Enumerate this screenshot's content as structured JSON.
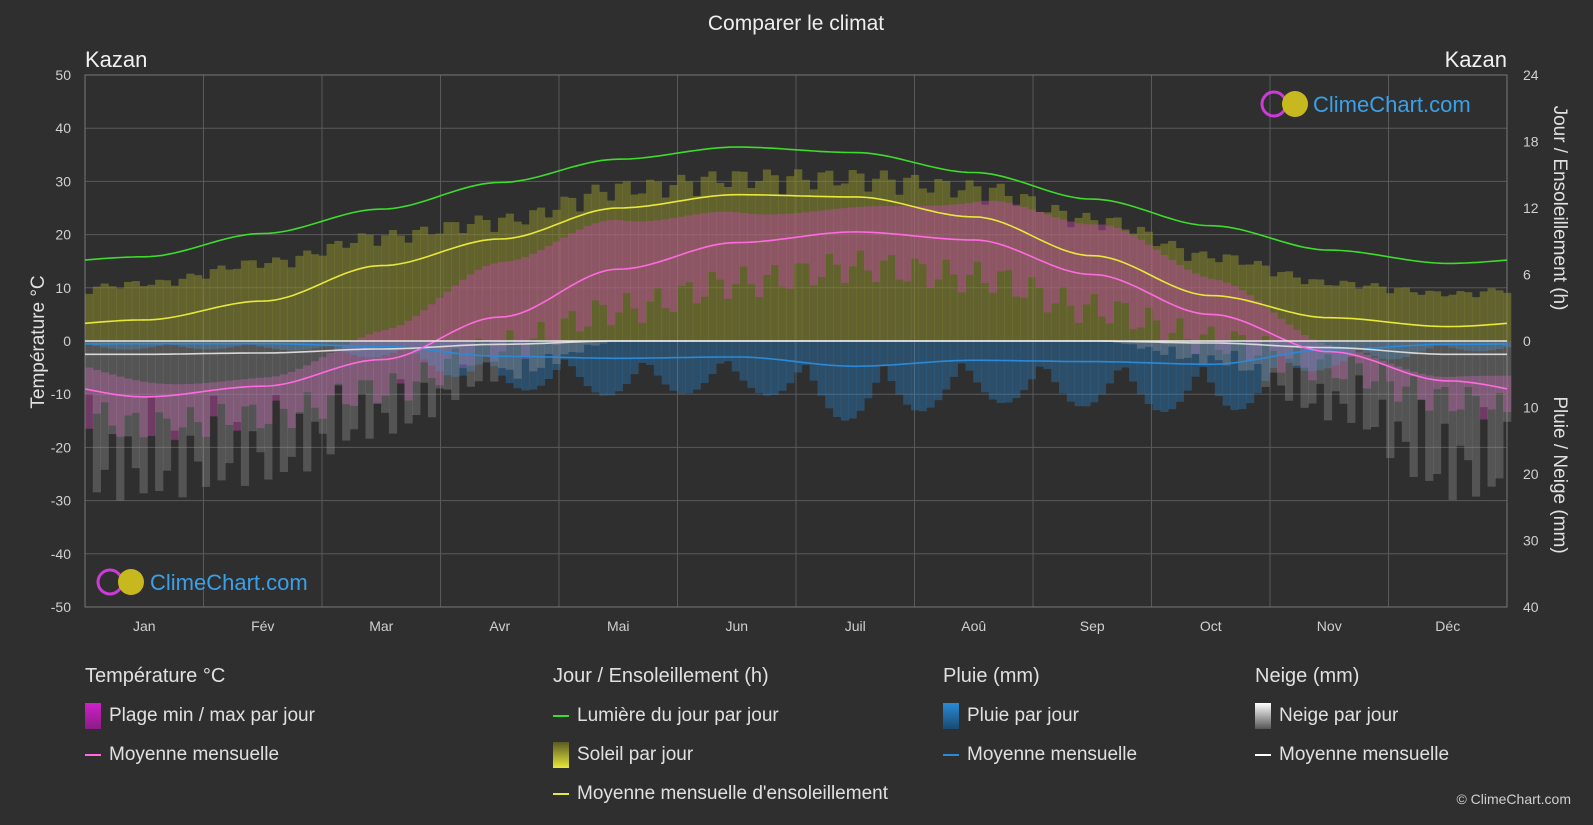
{
  "page": {
    "title": "Comparer le climat",
    "location_left": "Kazan",
    "location_right": "Kazan",
    "watermark": "ClimeChart.com",
    "copyright": "© ClimeChart.com"
  },
  "axes": {
    "left_label": "Température °C",
    "right_top_label": "Jour / Ensoleillement (h)",
    "right_bottom_label": "Pluie / Neige (mm)",
    "left_ticks": [
      "50",
      "40",
      "30",
      "20",
      "10",
      "0",
      "-10",
      "-20",
      "-30",
      "-40",
      "-50"
    ],
    "right_top_ticks": [
      "24",
      "18",
      "12",
      "6",
      "0"
    ],
    "right_bottom_ticks": [
      "10",
      "20",
      "30",
      "40"
    ],
    "months": [
      "Jan",
      "Fév",
      "Mar",
      "Avr",
      "Mai",
      "Jun",
      "Juil",
      "Aoû",
      "Sep",
      "Oct",
      "Nov",
      "Déc"
    ]
  },
  "legend": {
    "temperature": {
      "title": "Température °C",
      "range": "Plage min / max par jour",
      "mean": "Moyenne mensuelle"
    },
    "sun": {
      "title": "Jour / Ensoleillement (h)",
      "daylight": "Lumière du jour par jour",
      "sunshine": "Soleil par jour",
      "sun_mean": "Moyenne mensuelle d'ensoleillement"
    },
    "rain": {
      "title": "Pluie (mm)",
      "daily": "Pluie par jour",
      "mean": "Moyenne mensuelle"
    },
    "snow": {
      "title": "Neige (mm)",
      "daily": "Neige par jour",
      "mean": "Moyenne mensuelle"
    }
  },
  "colors": {
    "background": "#2f2f2f",
    "grid": "#5a5a5a",
    "daylight": "#3ddc2a",
    "sunshine_mean": "#e8e83a",
    "sunshine_fill": "#8c8c2e",
    "temp_mean": "#ff6ae0",
    "temp_range": "#c04aa8",
    "rain": "#2a8ad8",
    "snow": "#d8d8d8",
    "brand": "#3aa0e8"
  },
  "chart_data": {
    "type": "line",
    "categories": [
      "Jan",
      "Fév",
      "Mar",
      "Avr",
      "Mai",
      "Jun",
      "Juil",
      "Aoû",
      "Sep",
      "Oct",
      "Nov",
      "Déc"
    ],
    "temperature_ylim": [
      -50,
      50
    ],
    "hours_ylim": [
      0,
      24
    ],
    "precip_ylim": [
      0,
      40
    ],
    "series": [
      {
        "name": "Lumière du jour par jour",
        "axis": "hours",
        "values": [
          7.6,
          9.7,
          11.9,
          14.3,
          16.4,
          17.5,
          17.0,
          15.2,
          12.8,
          10.4,
          8.2,
          7.0
        ]
      },
      {
        "name": "Moyenne mensuelle d'ensoleillement",
        "axis": "hours",
        "values": [
          1.9,
          3.6,
          6.8,
          9.2,
          12.0,
          13.2,
          13.0,
          11.2,
          7.7,
          4.1,
          2.1,
          1.3
        ]
      },
      {
        "name": "Soleil par jour",
        "axis": "hours",
        "values": [
          5.5,
          7.5,
          10.0,
          11.5,
          14.5,
          15.5,
          15.5,
          14.5,
          11.5,
          8.0,
          5.5,
          4.5
        ]
      },
      {
        "name": "Moyenne mensuelle",
        "axis": "temperature",
        "values": [
          -10.5,
          -8.5,
          -3.5,
          4.5,
          13.5,
          18.5,
          20.5,
          19.0,
          12.5,
          5.0,
          -2.0,
          -7.5
        ]
      },
      {
        "name": "Plage min / max par jour (max)",
        "axis": "temperature",
        "values": [
          -6,
          -4,
          2,
          12,
          21,
          26,
          28,
          26,
          19,
          10,
          1,
          -4
        ]
      },
      {
        "name": "Plage min / max par jour (min)",
        "axis": "temperature",
        "values": [
          -16,
          -14,
          -9,
          -1,
          6,
          11,
          14,
          12,
          6,
          0,
          -5,
          -11
        ]
      },
      {
        "name": "Pluie moyenne mensuelle",
        "axis": "precip",
        "values": [
          0.4,
          0.4,
          0.8,
          2.3,
          2.6,
          2.4,
          3.8,
          2.9,
          3.1,
          3.5,
          1.3,
          0.5
        ]
      },
      {
        "name": "Neige moyenne mensuelle",
        "axis": "precip",
        "values": [
          2.0,
          1.8,
          1.2,
          0.5,
          0.0,
          0.0,
          0.0,
          0.0,
          0.0,
          0.3,
          1.0,
          2.0
        ]
      }
    ]
  }
}
